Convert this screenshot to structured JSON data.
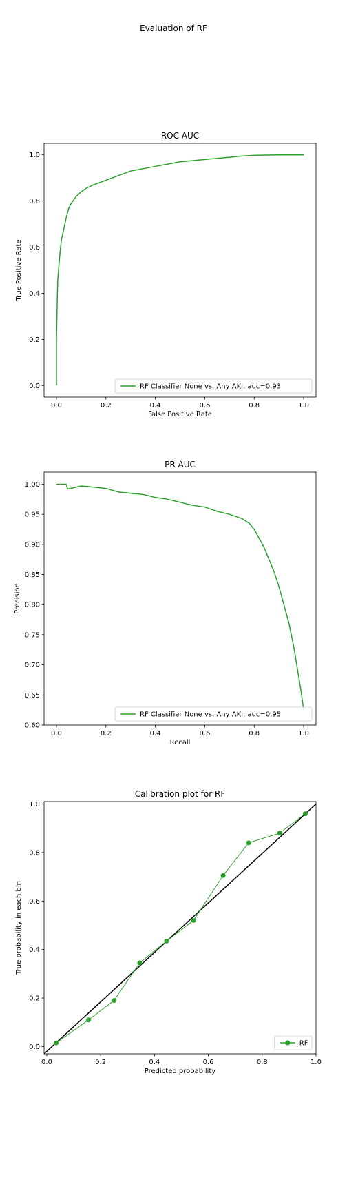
{
  "figure": {
    "title": "Evaluation of RF"
  },
  "colors": {
    "series": "#2ca02c",
    "reference": "#000000",
    "axes": "#000000"
  },
  "chart_data": [
    {
      "type": "line",
      "title": "ROC AUC",
      "xlabel": "False Positive Rate",
      "ylabel": "True Positive Rate",
      "xlim": [
        -0.05,
        1.05
      ],
      "ylim": [
        -0.05,
        1.05
      ],
      "xticks": [
        "0.0",
        "0.2",
        "0.4",
        "0.6",
        "0.8",
        "1.0"
      ],
      "yticks": [
        "0.0",
        "0.2",
        "0.4",
        "0.6",
        "0.8",
        "1.0"
      ],
      "legend_position": "lower right",
      "series": [
        {
          "name": "RF Classifier None vs. Any AKI, auc=0.93",
          "x": [
            0.0,
            0.0,
            0.003,
            0.005,
            0.01,
            0.015,
            0.02,
            0.03,
            0.04,
            0.05,
            0.06,
            0.08,
            0.1,
            0.12,
            0.15,
            0.2,
            0.25,
            0.3,
            0.35,
            0.4,
            0.45,
            0.5,
            0.55,
            0.6,
            0.65,
            0.7,
            0.75,
            0.8,
            0.9,
            1.0
          ],
          "y": [
            0.0,
            0.2,
            0.35,
            0.45,
            0.52,
            0.58,
            0.63,
            0.68,
            0.73,
            0.77,
            0.79,
            0.82,
            0.84,
            0.855,
            0.87,
            0.89,
            0.91,
            0.93,
            0.94,
            0.95,
            0.96,
            0.97,
            0.975,
            0.98,
            0.985,
            0.99,
            0.995,
            0.998,
            1.0,
            1.0
          ]
        }
      ]
    },
    {
      "type": "line",
      "title": "PR AUC",
      "xlabel": "Recall",
      "ylabel": "Precision",
      "xlim": [
        -0.05,
        1.05
      ],
      "ylim": [
        0.6,
        1.02
      ],
      "xticks": [
        "0.0",
        "0.2",
        "0.4",
        "0.6",
        "0.8",
        "1.0"
      ],
      "yticks": [
        "0.60",
        "0.65",
        "0.70",
        "0.75",
        "0.80",
        "0.85",
        "0.90",
        "0.95",
        "1.00"
      ],
      "legend_position": "lower right",
      "series": [
        {
          "name": "RF Classifier None vs. Any AKI, auc=0.95",
          "x": [
            0.0,
            0.04,
            0.045,
            0.1,
            0.13,
            0.2,
            0.25,
            0.3,
            0.35,
            0.4,
            0.45,
            0.5,
            0.55,
            0.6,
            0.65,
            0.7,
            0.75,
            0.78,
            0.8,
            0.82,
            0.84,
            0.86,
            0.88,
            0.9,
            0.92,
            0.94,
            0.96,
            0.97,
            0.98,
            0.99,
            1.0
          ],
          "y": [
            1.0,
            1.0,
            0.992,
            0.997,
            0.996,
            0.993,
            0.987,
            0.985,
            0.983,
            0.978,
            0.975,
            0.97,
            0.965,
            0.962,
            0.955,
            0.95,
            0.943,
            0.935,
            0.925,
            0.91,
            0.895,
            0.875,
            0.855,
            0.83,
            0.8,
            0.77,
            0.73,
            0.705,
            0.68,
            0.655,
            0.625
          ]
        }
      ]
    },
    {
      "type": "line",
      "title": "Calibration plot for RF",
      "xlabel": "Predicted probability",
      "ylabel": "True probability in each bin",
      "xlim": [
        -0.01,
        1.0
      ],
      "ylim": [
        -0.03,
        1.01
      ],
      "xticks": [
        "0.0",
        "0.2",
        "0.4",
        "0.6",
        "0.8",
        "1.0"
      ],
      "yticks": [
        "0.0",
        "0.2",
        "0.4",
        "0.6",
        "0.8",
        "1.0"
      ],
      "legend_position": "lower right",
      "reference_line": {
        "x": [
          -0.01,
          1.0
        ],
        "y": [
          -0.03,
          1.0
        ]
      },
      "series": [
        {
          "name": "RF",
          "markers": true,
          "x": [
            0.035,
            0.155,
            0.25,
            0.345,
            0.445,
            0.545,
            0.655,
            0.75,
            0.865,
            0.96
          ],
          "y": [
            0.015,
            0.11,
            0.19,
            0.345,
            0.435,
            0.52,
            0.705,
            0.84,
            0.88,
            0.96
          ]
        }
      ]
    }
  ]
}
